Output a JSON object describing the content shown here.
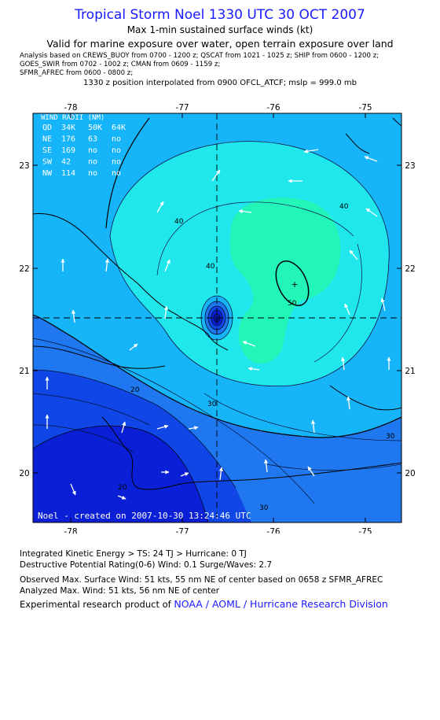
{
  "header": {
    "title": "Tropical Storm Noel 1330 UTC 30 OCT 2007",
    "subtitle": "Max 1-min sustained surface winds (kt)",
    "validity": "Valid for marine exposure over water, open terrain exposure over land",
    "analysis_lines": [
      "Analysis based on  CREWS_BUOY from 0700 - 1200 z;  QSCAT from 1021 - 1025 z;  SHIP from 0600 - 1200 z;",
      "GOES_SWIR from 0702 - 1002 z;  CMAN from 0609 - 1159 z;",
      "SFMR_AFREC from 0600 - 0800 z;"
    ],
    "position_note": "1330 z position interpolated from 0900 OFCL_ATCF; mslp = 999.0 mb"
  },
  "map": {
    "lon_ticks": [
      "-78",
      "-77",
      "-76",
      "-75"
    ],
    "lat_ticks": [
      "23",
      "22",
      "21",
      "20"
    ],
    "contour_labels": [
      "40",
      "40",
      "40",
      "50",
      "30",
      "30",
      "30",
      "20",
      "20"
    ],
    "wind_radii": {
      "title": "WIND RADII (NM)",
      "header": [
        "QD",
        "34K",
        "50K",
        "64K"
      ],
      "rows": [
        [
          "NE",
          "176",
          "63",
          "no"
        ],
        [
          "SE",
          "169",
          "no",
          "no"
        ],
        [
          "SW",
          "42",
          "no",
          "no"
        ],
        [
          "NW",
          "114",
          "no",
          "no"
        ]
      ]
    },
    "created_note": "Noel - created on 2007-10-30 13:24:46 UTC",
    "colors": {
      "c10": "#0a1fd6",
      "c20": "#1146e6",
      "c30": "#1f78ef",
      "c40": "#16b4f8",
      "c50": "#1fe7ec",
      "c60": "#21f5b8",
      "land": "#000000",
      "arrow": "#ffffff"
    }
  },
  "footer": {
    "ike": "Integrated Kinetic Energy > TS: 24 TJ   > Hurricane: 0 TJ",
    "rating": "Destructive Potential Rating(0-6)   Wind: 0.1 Surge/Waves: 2.7",
    "observed": "Observed Max. Surface Wind: 51 kts, 55 nm NE of center based on 0658 z SFMR_AFREC",
    "analyzed": "Analyzed Max. Wind: 51 kts, 56 nm NE of center",
    "credit_prefix": "Experimental research product of ",
    "credit_org": "NOAA / AOML / Hurricane Research Division"
  }
}
